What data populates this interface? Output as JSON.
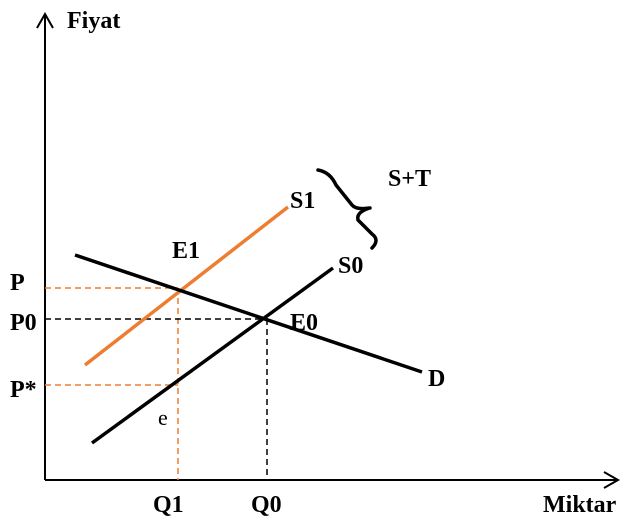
{
  "axes": {
    "y_label": "Fiyat",
    "x_label": "Miktar"
  },
  "curves": {
    "supply_original": "S0",
    "supply_taxed": "S1",
    "demand": "D",
    "tax_brace_label": "S+T"
  },
  "points": {
    "new_equilibrium": "E1",
    "original_equilibrium": "E0",
    "producer_point": "e"
  },
  "price_labels": {
    "consumer_price": "P",
    "original_price": "P0",
    "producer_price": "P*"
  },
  "quantity_labels": {
    "new_quantity": "Q1",
    "original_quantity": "Q0"
  },
  "colors": {
    "axes": "#000000",
    "supply_original": "#000000",
    "supply_taxed": "#ED7D31",
    "demand": "#000000",
    "guide_black": "#000000",
    "guide_orange": "#ED7D31"
  }
}
